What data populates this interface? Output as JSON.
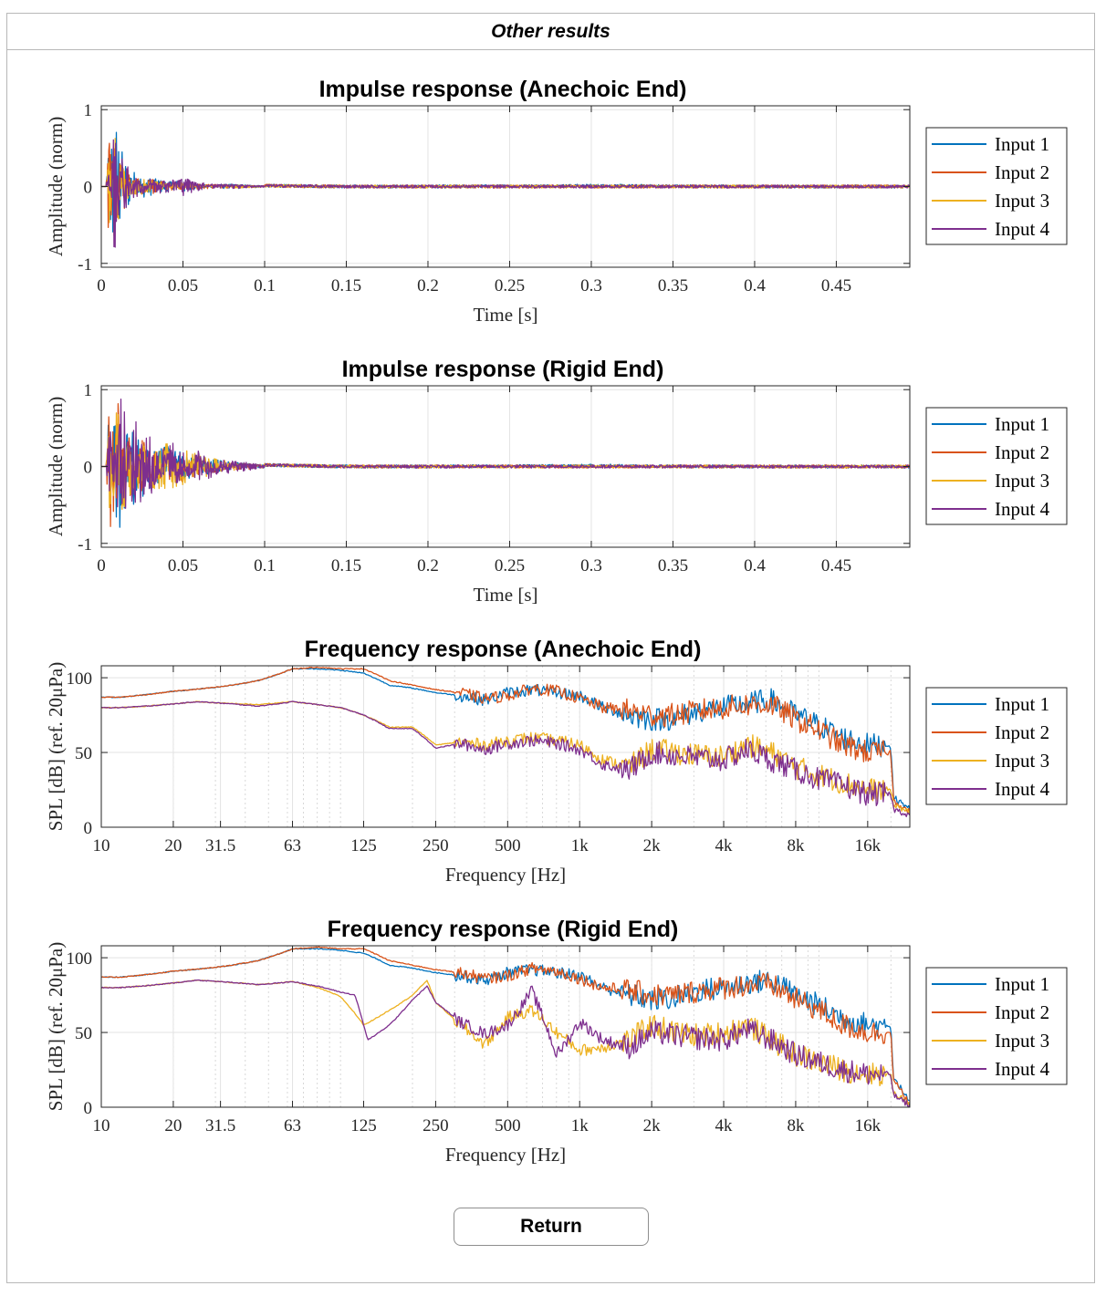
{
  "panel": {
    "title": "Other results"
  },
  "return_label": "Return",
  "colors": {
    "input1": "#0072BD",
    "input2": "#D95319",
    "input3": "#EDB120",
    "input4": "#7E2F8E",
    "grid": "#e3e3e3"
  },
  "chart_data": [
    {
      "type": "line",
      "title": "Impulse response (Anechoic End)",
      "xlabel": "Time [s]",
      "ylabel": "Amplitude (norm)",
      "xlim": [
        0,
        0.495
      ],
      "ylim": [
        -1.05,
        1.05
      ],
      "xticks": [
        0,
        0.05,
        0.1,
        0.15,
        0.2,
        0.25,
        0.3,
        0.35,
        0.4,
        0.45
      ],
      "xticklabels": [
        "0",
        "0.05",
        "0.1",
        "0.15",
        "0.2",
        "0.25",
        "0.3",
        "0.35",
        "0.4",
        "0.45"
      ],
      "yticks": [
        -1,
        0,
        1
      ],
      "yticklabels": [
        "-1",
        "0",
        "1"
      ],
      "legend": "right",
      "series": [
        {
          "name": "Input 1",
          "x": [
            0,
            0.003,
            0.005,
            0.006,
            0.008,
            0.01,
            0.012,
            0.015,
            0.02,
            0.025,
            0.03,
            0.04,
            0.05,
            0.06,
            0.08,
            0.1,
            0.15,
            0.2,
            0.3,
            0.4,
            0.495
          ],
          "y": [
            0,
            0,
            1,
            -0.6,
            0.9,
            -0.8,
            0.5,
            -0.4,
            0.2,
            -0.15,
            0.12,
            0.06,
            0.08,
            0.02,
            0.03,
            0.01,
            0,
            0,
            0.01,
            0,
            0
          ]
        },
        {
          "name": "Input 2",
          "x": [
            0,
            0.003,
            0.005,
            0.006,
            0.008,
            0.01,
            0.012,
            0.015,
            0.02,
            0.025,
            0.03,
            0.04,
            0.05,
            0.06,
            0.08,
            0.1,
            0.15,
            0.2,
            0.3,
            0.4,
            0.495
          ],
          "y": [
            0,
            0,
            0.9,
            -0.4,
            1,
            -0.6,
            0.4,
            -0.3,
            0.15,
            -0.1,
            0.1,
            0.05,
            0.04,
            0.03,
            0.02,
            0.01,
            0,
            0,
            0,
            0,
            0
          ]
        },
        {
          "name": "Input 3",
          "x": [
            0,
            0.003,
            0.005,
            0.006,
            0.008,
            0.01,
            0.012,
            0.015,
            0.02,
            0.025,
            0.03,
            0.04,
            0.05,
            0.06,
            0.08,
            0.1,
            0.15,
            0.2,
            0.3,
            0.4,
            0.495
          ],
          "y": [
            0,
            0,
            0.8,
            -0.3,
            0.7,
            -0.5,
            0.3,
            -0.2,
            0.12,
            -0.1,
            0.08,
            0.05,
            0.05,
            0.02,
            0.02,
            0.01,
            0,
            0,
            0,
            0,
            0
          ]
        },
        {
          "name": "Input 4",
          "x": [
            0,
            0.003,
            0.005,
            0.006,
            0.008,
            0.01,
            0.012,
            0.015,
            0.02,
            0.025,
            0.03,
            0.04,
            0.05,
            0.06,
            0.08,
            0.1,
            0.15,
            0.2,
            0.3,
            0.4,
            0.495
          ],
          "y": [
            0,
            0,
            0.5,
            -0.2,
            1,
            -0.45,
            0.4,
            -0.3,
            0.15,
            -0.1,
            0.1,
            0.08,
            0.12,
            0.05,
            0.03,
            0.01,
            0,
            0,
            0,
            0,
            0
          ]
        }
      ]
    },
    {
      "type": "line",
      "title": "Impulse response (Rigid End)",
      "xlabel": "Time [s]",
      "ylabel": "Amplitude (norm)",
      "xlim": [
        0,
        0.495
      ],
      "ylim": [
        -1.05,
        1.05
      ],
      "xticks": [
        0,
        0.05,
        0.1,
        0.15,
        0.2,
        0.25,
        0.3,
        0.35,
        0.4,
        0.45
      ],
      "xticklabels": [
        "0",
        "0.05",
        "0.1",
        "0.15",
        "0.2",
        "0.25",
        "0.3",
        "0.35",
        "0.4",
        "0.45"
      ],
      "yticks": [
        -1,
        0,
        1
      ],
      "yticklabels": [
        "-1",
        "0",
        "1"
      ],
      "legend": "right",
      "series": [
        {
          "name": "Input 1",
          "x": [
            0,
            0.003,
            0.005,
            0.007,
            0.01,
            0.013,
            0.016,
            0.02,
            0.025,
            0.03,
            0.04,
            0.05,
            0.06,
            0.07,
            0.08,
            0.1,
            0.15,
            0.2,
            0.3,
            0.4,
            0.495
          ],
          "y": [
            0,
            0,
            1,
            -0.5,
            0.8,
            -0.8,
            0.5,
            -0.5,
            0.4,
            -0.3,
            0.3,
            -0.2,
            0.15,
            -0.1,
            0.06,
            0.02,
            0,
            0,
            0.01,
            0,
            0
          ]
        },
        {
          "name": "Input 2",
          "x": [
            0,
            0.003,
            0.005,
            0.007,
            0.01,
            0.013,
            0.016,
            0.02,
            0.025,
            0.03,
            0.04,
            0.05,
            0.06,
            0.07,
            0.08,
            0.1,
            0.15,
            0.2,
            0.3,
            0.4,
            0.495
          ],
          "y": [
            0,
            0,
            0.9,
            -0.7,
            1,
            -0.6,
            0.4,
            -0.4,
            0.35,
            -0.3,
            0.25,
            -0.2,
            0.12,
            -0.08,
            0.05,
            0.02,
            0,
            0,
            0,
            0,
            0
          ]
        },
        {
          "name": "Input 3",
          "x": [
            0,
            0.003,
            0.005,
            0.007,
            0.01,
            0.013,
            0.016,
            0.02,
            0.025,
            0.03,
            0.04,
            0.05,
            0.06,
            0.07,
            0.08,
            0.1,
            0.15,
            0.2,
            0.3,
            0.4,
            0.495
          ],
          "y": [
            0,
            0,
            0.7,
            -0.5,
            0.8,
            -0.6,
            0.4,
            -0.4,
            0.35,
            -0.3,
            0.3,
            -0.25,
            0.15,
            -0.1,
            0.06,
            0.02,
            0,
            0,
            0,
            0,
            0
          ]
        },
        {
          "name": "Input 4",
          "x": [
            0,
            0.003,
            0.005,
            0.007,
            0.01,
            0.013,
            0.016,
            0.02,
            0.025,
            0.03,
            0.04,
            0.05,
            0.06,
            0.07,
            0.08,
            0.1,
            0.15,
            0.2,
            0.3,
            0.4,
            0.495
          ],
          "y": [
            0,
            0,
            0.6,
            -0.4,
            1,
            -0.95,
            0.6,
            -0.7,
            0.45,
            -0.4,
            0.35,
            -0.25,
            0.2,
            -0.12,
            0.08,
            0.02,
            0,
            0,
            0,
            0,
            0
          ]
        }
      ]
    },
    {
      "type": "line",
      "title": "Frequency response (Anechoic End)",
      "xlabel": "Frequency [Hz]",
      "ylabel": "SPL [dB] (ref. 20μPa)",
      "xscale": "log",
      "xlim": [
        10,
        24000
      ],
      "ylim": [
        0,
        108
      ],
      "xticks": [
        10,
        20,
        31.5,
        63,
        125,
        250,
        500,
        1000,
        2000,
        4000,
        8000,
        16000
      ],
      "xticklabels": [
        "10",
        "20",
        "31.5",
        "63",
        "125",
        "250",
        "500",
        "1k",
        "2k",
        "4k",
        "8k",
        "16k"
      ],
      "yticks": [
        0,
        50,
        100
      ],
      "yticklabels": [
        "0",
        "50",
        "100"
      ],
      "legend": "right",
      "series": [
        {
          "name": "Input 1",
          "x": [
            12,
            20,
            31.5,
            45,
            63,
            80,
            100,
            125,
            160,
            200,
            250,
            315,
            400,
            500,
            630,
            800,
            1000,
            1250,
            1600,
            2000,
            2500,
            3150,
            4000,
            5000,
            6300,
            8000,
            10000,
            12500,
            16000,
            20000,
            20500,
            24000
          ],
          "y": [
            87,
            91,
            94,
            98,
            106,
            106,
            105,
            103,
            95,
            93,
            90,
            88,
            85,
            90,
            92,
            90,
            88,
            80,
            75,
            72,
            73,
            78,
            80,
            83,
            85,
            75,
            68,
            60,
            55,
            55,
            20,
            12
          ]
        },
        {
          "name": "Input 2",
          "x": [
            12,
            20,
            31.5,
            45,
            63,
            80,
            100,
            125,
            160,
            200,
            250,
            315,
            400,
            500,
            630,
            800,
            1000,
            1250,
            1600,
            2000,
            2500,
            3150,
            4000,
            5000,
            6300,
            8000,
            10000,
            12500,
            16000,
            20000,
            20500,
            24000
          ],
          "y": [
            87,
            91,
            94,
            98,
            106,
            107,
            106,
            106,
            98,
            95,
            92,
            90,
            86,
            88,
            93,
            91,
            86,
            80,
            78,
            75,
            75,
            78,
            80,
            82,
            82,
            72,
            65,
            55,
            50,
            50,
            18,
            10
          ]
        },
        {
          "name": "Input 3",
          "x": [
            12,
            25,
            31.5,
            45,
            63,
            80,
            100,
            125,
            160,
            200,
            250,
            315,
            400,
            500,
            630,
            800,
            1000,
            1250,
            1600,
            2000,
            2500,
            3150,
            4000,
            5000,
            6300,
            8000,
            10000,
            12500,
            16000,
            20000,
            20500,
            24000
          ],
          "y": [
            80,
            84,
            83,
            82,
            84,
            82,
            80,
            75,
            67,
            67,
            55,
            57,
            55,
            58,
            60,
            58,
            55,
            45,
            40,
            52,
            50,
            48,
            47,
            55,
            50,
            40,
            35,
            30,
            25,
            25,
            15,
            10
          ]
        },
        {
          "name": "Input 4",
          "x": [
            12,
            25,
            31.5,
            45,
            63,
            80,
            100,
            125,
            160,
            200,
            250,
            315,
            400,
            500,
            630,
            800,
            1000,
            1250,
            1600,
            2000,
            2500,
            3150,
            4000,
            5000,
            6300,
            8000,
            10000,
            12500,
            16000,
            20000,
            20500,
            24000
          ],
          "y": [
            80,
            84,
            83,
            81,
            84,
            82,
            80,
            75,
            66,
            66,
            53,
            56,
            52,
            56,
            58,
            56,
            52,
            42,
            38,
            50,
            48,
            46,
            45,
            52,
            45,
            38,
            32,
            28,
            22,
            22,
            12,
            8
          ]
        }
      ]
    },
    {
      "type": "line",
      "title": "Frequency response (Rigid End)",
      "xlabel": "Frequency [Hz]",
      "ylabel": "SPL [dB] (ref. 20μPa)",
      "xscale": "log",
      "xlim": [
        10,
        24000
      ],
      "ylim": [
        0,
        108
      ],
      "xticks": [
        10,
        20,
        31.5,
        63,
        125,
        250,
        500,
        1000,
        2000,
        4000,
        8000,
        16000
      ],
      "xticklabels": [
        "10",
        "20",
        "31.5",
        "63",
        "125",
        "250",
        "500",
        "1k",
        "2k",
        "4k",
        "8k",
        "16k"
      ],
      "yticks": [
        0,
        50,
        100
      ],
      "yticklabels": [
        "0",
        "50",
        "100"
      ],
      "legend": "right",
      "series": [
        {
          "name": "Input 1",
          "x": [
            12,
            20,
            31.5,
            45,
            63,
            80,
            100,
            125,
            160,
            200,
            250,
            315,
            400,
            500,
            630,
            800,
            1000,
            1250,
            1600,
            2000,
            2500,
            3150,
            4000,
            5000,
            6300,
            8000,
            10000,
            12500,
            16000,
            20000,
            20500,
            24000
          ],
          "y": [
            87,
            91,
            94,
            98,
            106,
            106,
            105,
            103,
            95,
            93,
            90,
            88,
            85,
            90,
            92,
            90,
            88,
            80,
            75,
            72,
            73,
            78,
            80,
            83,
            85,
            75,
            68,
            60,
            55,
            55,
            20,
            3
          ]
        },
        {
          "name": "Input 2",
          "x": [
            12,
            20,
            31.5,
            45,
            63,
            80,
            100,
            125,
            160,
            200,
            250,
            315,
            400,
            500,
            630,
            800,
            1000,
            1250,
            1600,
            2000,
            2500,
            3150,
            4000,
            5000,
            6300,
            8000,
            10000,
            12500,
            16000,
            20000,
            20500,
            24000
          ],
          "y": [
            87,
            91,
            94,
            98,
            106,
            107,
            106,
            106,
            98,
            95,
            92,
            90,
            86,
            88,
            93,
            91,
            86,
            80,
            78,
            75,
            75,
            78,
            80,
            82,
            82,
            72,
            65,
            55,
            50,
            50,
            18,
            2
          ]
        },
        {
          "name": "Input 3",
          "x": [
            12,
            25,
            31.5,
            45,
            63,
            80,
            100,
            125,
            160,
            200,
            230,
            250,
            315,
            400,
            500,
            630,
            800,
            1000,
            1250,
            1600,
            2000,
            2500,
            3150,
            4000,
            5000,
            6300,
            8000,
            10000,
            12500,
            16000,
            20000,
            20500,
            24000
          ],
          "y": [
            80,
            85,
            84,
            82,
            84,
            80,
            74,
            55,
            65,
            75,
            85,
            70,
            55,
            42,
            60,
            65,
            50,
            38,
            40,
            45,
            55,
            50,
            48,
            50,
            55,
            45,
            35,
            30,
            25,
            22,
            22,
            10,
            2
          ]
        },
        {
          "name": "Input 4",
          "x": [
            12,
            25,
            31.5,
            45,
            63,
            80,
            100,
            115,
            130,
            160,
            200,
            230,
            250,
            315,
            400,
            500,
            630,
            800,
            1000,
            1250,
            1600,
            2000,
            2500,
            3150,
            4000,
            5000,
            6300,
            8000,
            10000,
            12500,
            16000,
            20000,
            20500,
            24000
          ],
          "y": [
            80,
            85,
            84,
            82,
            84,
            81,
            77,
            75,
            45,
            55,
            72,
            81,
            70,
            57,
            49,
            55,
            78,
            35,
            57,
            45,
            40,
            50,
            48,
            46,
            45,
            52,
            45,
            35,
            30,
            25,
            22,
            22,
            8,
            1
          ]
        }
      ]
    }
  ]
}
